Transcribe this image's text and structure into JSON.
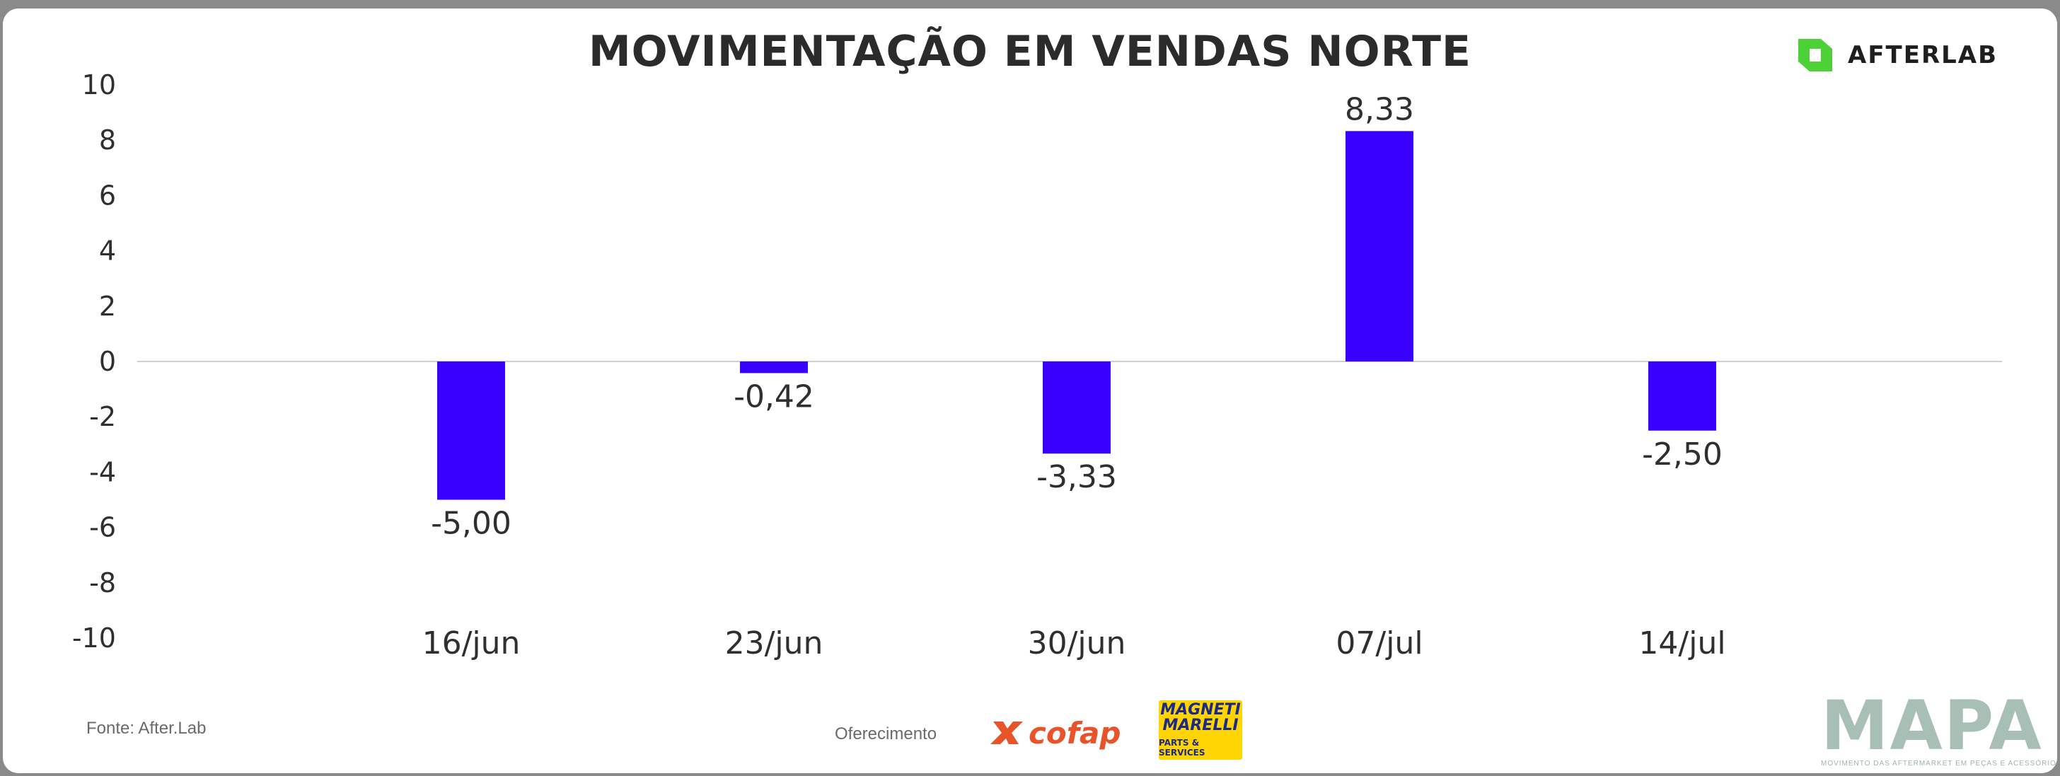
{
  "header": {
    "title": "MOVIMENTAÇÃO EM VENDAS NORTE",
    "brand": "AFTERLAB"
  },
  "footer": {
    "source": "Fonte: After.Lab",
    "sponsor_label": "Oferecimento",
    "sponsor_1": "cofap",
    "sponsor_2_line1": "MAGNETI",
    "sponsor_2_line2": "MARELLI",
    "sponsor_2_tagline": "PARTS & SERVICES",
    "mapa": "MAPA",
    "mapa_tagline": "MOVIMENTO DAS AFTERMARKET EM PEÇAS E ACESSÓRIOS"
  },
  "colors": {
    "bar": "#3a00ff",
    "brand_green": "#4cd137",
    "cofap_orange": "#e8542a",
    "magneti_yellow": "#ffd400"
  },
  "chart_data": {
    "type": "bar",
    "title": "MOVIMENTAÇÃO EM VENDAS NORTE",
    "categories": [
      "16/jun",
      "23/jun",
      "30/jun",
      "07/jul",
      "14/jul"
    ],
    "values": [
      -5.0,
      -0.42,
      -3.33,
      8.33,
      -2.5
    ],
    "value_labels": [
      "-5,00",
      "-0,42",
      "-3,33",
      "8,33",
      "-2,50"
    ],
    "ylim": [
      -10,
      10
    ],
    "yticks": [
      10,
      8,
      6,
      4,
      2,
      0,
      -2,
      -4,
      -6,
      -8,
      -10
    ],
    "ytick_labels": [
      "10",
      "8",
      "6",
      "4",
      "2",
      "0",
      "-2",
      "-4",
      "-6",
      "-8",
      "-10"
    ],
    "grid": false,
    "legend": "none"
  }
}
